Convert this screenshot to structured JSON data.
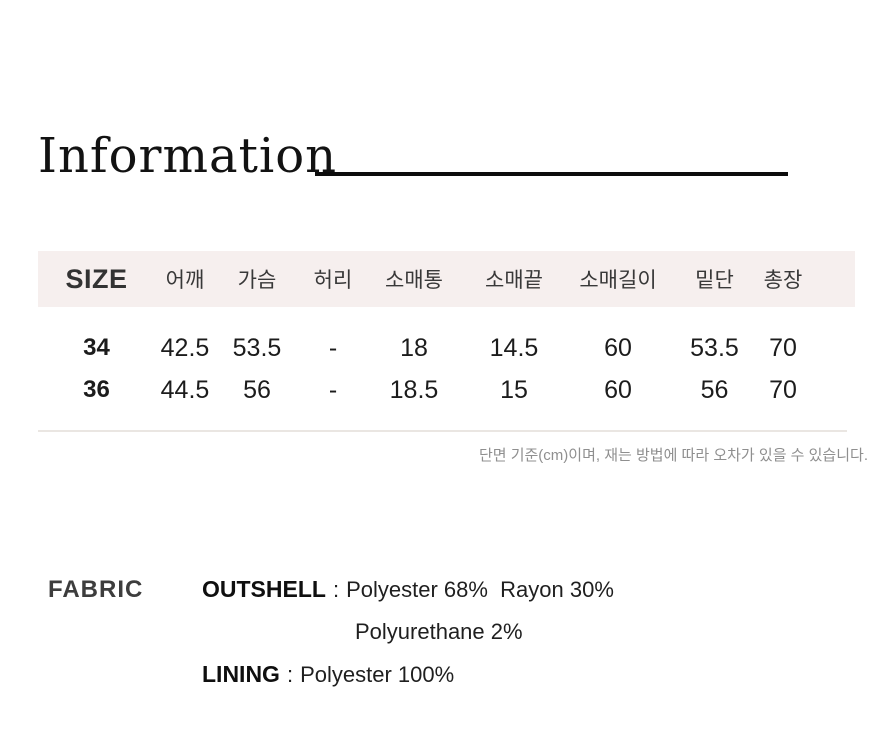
{
  "page": {
    "title": "Information"
  },
  "size_table": {
    "headers": [
      "SIZE",
      "어깨",
      "가슴",
      "허리",
      "소매통",
      "소매끝",
      "소매길이",
      "밑단",
      "총장"
    ],
    "rows": [
      {
        "size": "34",
        "values": [
          "42.5",
          "53.5",
          "-",
          "18",
          "14.5",
          "60",
          "53.5",
          "70"
        ]
      },
      {
        "size": "36",
        "values": [
          "44.5",
          "56",
          "-",
          "18.5",
          "15",
          "60",
          "56",
          "70"
        ]
      }
    ],
    "note": "단면 기준(cm)이며, 재는 방법에 따라 오차가 있을 수 있습니다."
  },
  "fabric": {
    "section_label": "FABRIC",
    "outshell_label": "OUTSHELL",
    "separator": ":",
    "outshell_value_line1": "Polyester 68%  Rayon 30%",
    "outshell_value_line2": "Polyurethane 2%",
    "lining_label": "LINING",
    "lining_value": "Polyester 100%"
  },
  "colors": {
    "header_band_bg": "#f6efee",
    "title_rule": "#0d0d0d",
    "table_bottom_rule": "#eae6e2",
    "note_text": "#8f8f8f"
  }
}
